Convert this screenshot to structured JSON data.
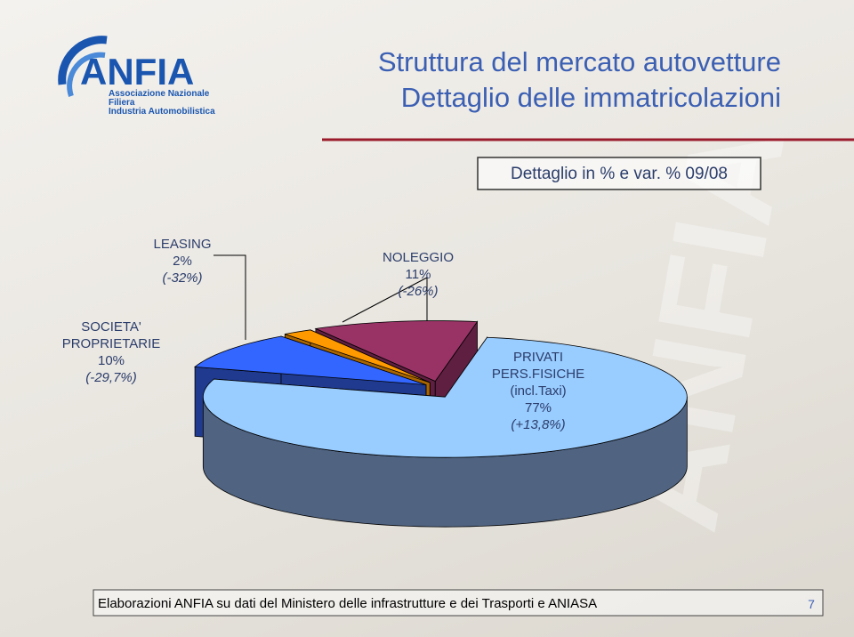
{
  "logo": {
    "name": "ANFIA",
    "lines": [
      "Associazione Nazionale",
      "Filiera",
      "Industria Automobilistica"
    ]
  },
  "header": {
    "title": [
      "Struttura del mercato autovetture",
      "Dettaglio delle immatricolazioni"
    ],
    "subtitle": "Dettaglio in % e var. % 09/08"
  },
  "chart_data": {
    "type": "pie",
    "categories": [
      "PRIVATI PERS.FISICHE (incl.Taxi)",
      "SOCIETA' PROPRIETARIE",
      "LEASING",
      "NOLEGGIO"
    ],
    "values": [
      77,
      10,
      2,
      11
    ],
    "value_labels": [
      "77%",
      "10%",
      "2%",
      "11%"
    ],
    "change_labels": [
      "(+13,8%)",
      "(-29,7%)",
      "(-32%)",
      "(-26%)"
    ],
    "colors": [
      "#99ccff",
      "#3366ff",
      "#ff9900",
      "#993366"
    ],
    "side_colors": [
      "#506482",
      "#1f3a8f",
      "#a86500",
      "#5e1f40"
    ]
  },
  "footer": {
    "source": "Elaborazioni ANFIA  su dati del Ministero delle infrastrutture e dei Trasporti e ANIASA",
    "page": "7"
  }
}
